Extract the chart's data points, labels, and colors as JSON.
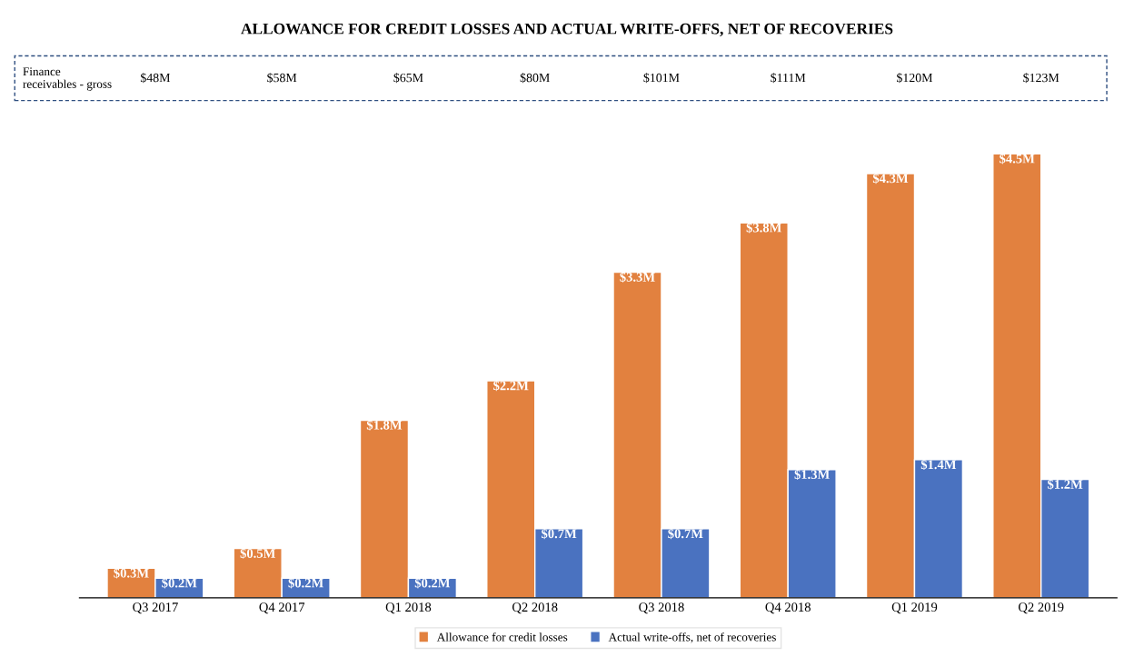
{
  "chart_data": {
    "type": "bar",
    "title": "ALLOWANCE FOR CREDIT LOSSES AND ACTUAL WRITE-OFFS, NET OF RECOVERIES",
    "categories": [
      "Q3 2017",
      "Q4 2017",
      "Q1 2018",
      "Q2 2018",
      "Q3 2018",
      "Q4 2018",
      "Q1 2019",
      "Q2 2019"
    ],
    "series": [
      {
        "name": "Allowance for credit losses",
        "color": "#e2813f",
        "values": [
          0.3,
          0.5,
          1.8,
          2.2,
          3.3,
          3.8,
          4.3,
          4.5
        ],
        "value_labels": [
          "$0.3M",
          "$0.5M",
          "$1.8M",
          "$2.2M",
          "$3.3M",
          "$3.8M",
          "$4.3M",
          "$4.5M"
        ]
      },
      {
        "name": "Actual write-offs, net of recoveries",
        "color": "#4a72c0",
        "values": [
          0.2,
          0.2,
          0.2,
          0.7,
          0.7,
          1.3,
          1.4,
          1.2
        ],
        "value_labels": [
          "$0.2M",
          "$0.2M",
          "$0.2M",
          "$0.7M",
          "$0.7M",
          "$1.3M",
          "$1.4M",
          "$1.2M"
        ]
      }
    ],
    "annotations": [
      "Finance\nreceivables - gross",
      "$48M",
      "$58M",
      "$65M",
      "$80M",
      "$101M",
      "$111M",
      "$120M",
      "$123M"
    ],
    "grid": false,
    "legend": "bottom",
    "tick_labels": "x"
  }
}
